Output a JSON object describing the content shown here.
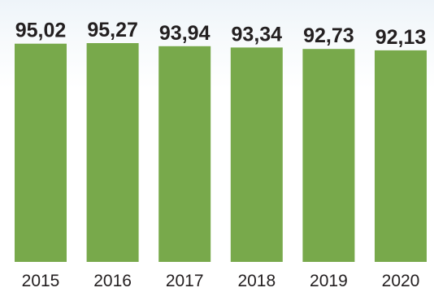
{
  "chart_data": {
    "type": "bar",
    "title": "",
    "xlabel": "",
    "ylabel": "",
    "categories": [
      "2015",
      "2016",
      "2017",
      "2018",
      "2019",
      "2020"
    ],
    "values": [
      95.02,
      95.27,
      93.94,
      93.34,
      92.73,
      92.13
    ],
    "data_labels": [
      "95,02",
      "95,27",
      "93,94",
      "93,34",
      "92,73",
      "92,13"
    ],
    "ylim": [
      0,
      95.27
    ],
    "grid": false,
    "legend": "none",
    "colors": {
      "bar": "#78a94b",
      "text": "#231f20"
    }
  }
}
